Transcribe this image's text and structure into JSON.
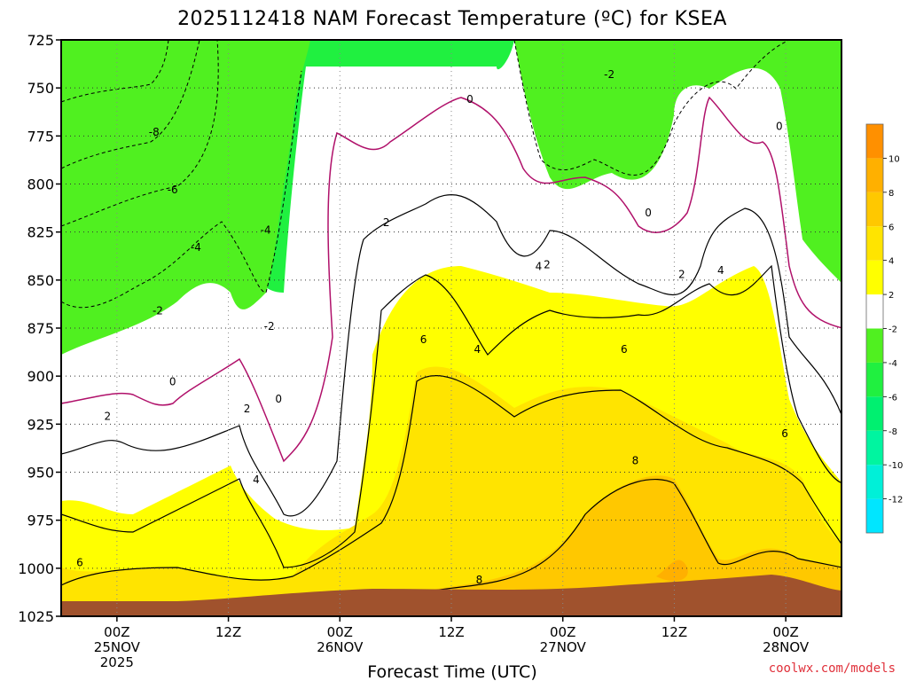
{
  "chart_data": {
    "type": "heatmap",
    "title": "2025112418 NAM Forecast Temperature (ºC) for KSEA",
    "xlabel": "Forecast Time (UTC)",
    "ylabel": "",
    "y_ticks": [
      "725",
      "750",
      "775",
      "800",
      "825",
      "850",
      "875",
      "900",
      "925",
      "950",
      "975",
      "1000",
      "1025"
    ],
    "y_range": [
      725,
      1025
    ],
    "y_inverted": true,
    "x_range_hours": [
      0,
      84
    ],
    "x_ticks": [
      {
        "h": 6,
        "lines": [
          "00Z",
          "25NOV",
          "2025"
        ]
      },
      {
        "h": 18,
        "lines": [
          "12Z"
        ]
      },
      {
        "h": 30,
        "lines": [
          "00Z",
          "26NOV"
        ]
      },
      {
        "h": 42,
        "lines": [
          "12Z"
        ]
      },
      {
        "h": 54,
        "lines": [
          "00Z",
          "27NOV"
        ]
      },
      {
        "h": 66,
        "lines": [
          "12Z"
        ]
      },
      {
        "h": 78,
        "lines": [
          "00Z",
          "28NOV"
        ]
      }
    ],
    "colorbar": {
      "levels": [
        -14,
        -12,
        -10,
        -8,
        -6,
        -4,
        -2,
        2,
        4,
        6,
        8,
        10,
        12
      ],
      "labels": [
        "-12",
        "-10",
        "-8",
        "-6",
        "-4",
        "-2",
        "2",
        "4",
        "6",
        "8",
        "10"
      ],
      "colors": [
        "#00e6ff",
        "#00f0d8",
        "#00f5a0",
        "#00f070",
        "#20f040",
        "#50f020",
        "#ffffff",
        "#ffff00",
        "#ffe400",
        "#ffc800",
        "#ffb000",
        "#ff9000"
      ]
    },
    "contour_labels": [
      {
        "text": "0",
        "h": 12.0,
        "p": 903
      },
      {
        "text": "0",
        "h": 23.4,
        "p": 912
      },
      {
        "text": "0",
        "h": 44.0,
        "p": 756
      },
      {
        "text": "0",
        "h": 63.2,
        "p": 815
      },
      {
        "text": "0",
        "h": 77.3,
        "p": 770
      },
      {
        "text": "-2",
        "h": 59.0,
        "p": 743
      },
      {
        "text": "-2",
        "h": 10.4,
        "p": 866
      },
      {
        "text": "-2",
        "h": 22.4,
        "p": 874
      },
      {
        "text": "-4",
        "h": 14.5,
        "p": 833
      },
      {
        "text": "-4",
        "h": 22.0,
        "p": 824
      },
      {
        "text": "-6",
        "h": 12.0,
        "p": 803
      },
      {
        "text": "-8",
        "h": 10.0,
        "p": 773
      },
      {
        "text": "2",
        "h": 5.0,
        "p": 921
      },
      {
        "text": "2",
        "h": 20.0,
        "p": 917
      },
      {
        "text": "2",
        "h": 35.0,
        "p": 820
      },
      {
        "text": "2",
        "h": 52.3,
        "p": 842
      },
      {
        "text": "2",
        "h": 66.8,
        "p": 847
      },
      {
        "text": "4",
        "h": 21.0,
        "p": 954
      },
      {
        "text": "4",
        "h": 44.8,
        "p": 886
      },
      {
        "text": "4",
        "h": 51.4,
        "p": 843
      },
      {
        "text": "4",
        "h": 71.0,
        "p": 845
      },
      {
        "text": "6",
        "h": 2.0,
        "p": 997
      },
      {
        "text": "6",
        "h": 39.0,
        "p": 881
      },
      {
        "text": "6",
        "h": 60.6,
        "p": 886
      },
      {
        "text": "6",
        "h": 77.9,
        "p": 930
      },
      {
        "text": "8",
        "h": 45.0,
        "p": 1006
      },
      {
        "text": "8",
        "h": 61.8,
        "p": 944
      }
    ]
  },
  "credit": "coolwx.com/models"
}
